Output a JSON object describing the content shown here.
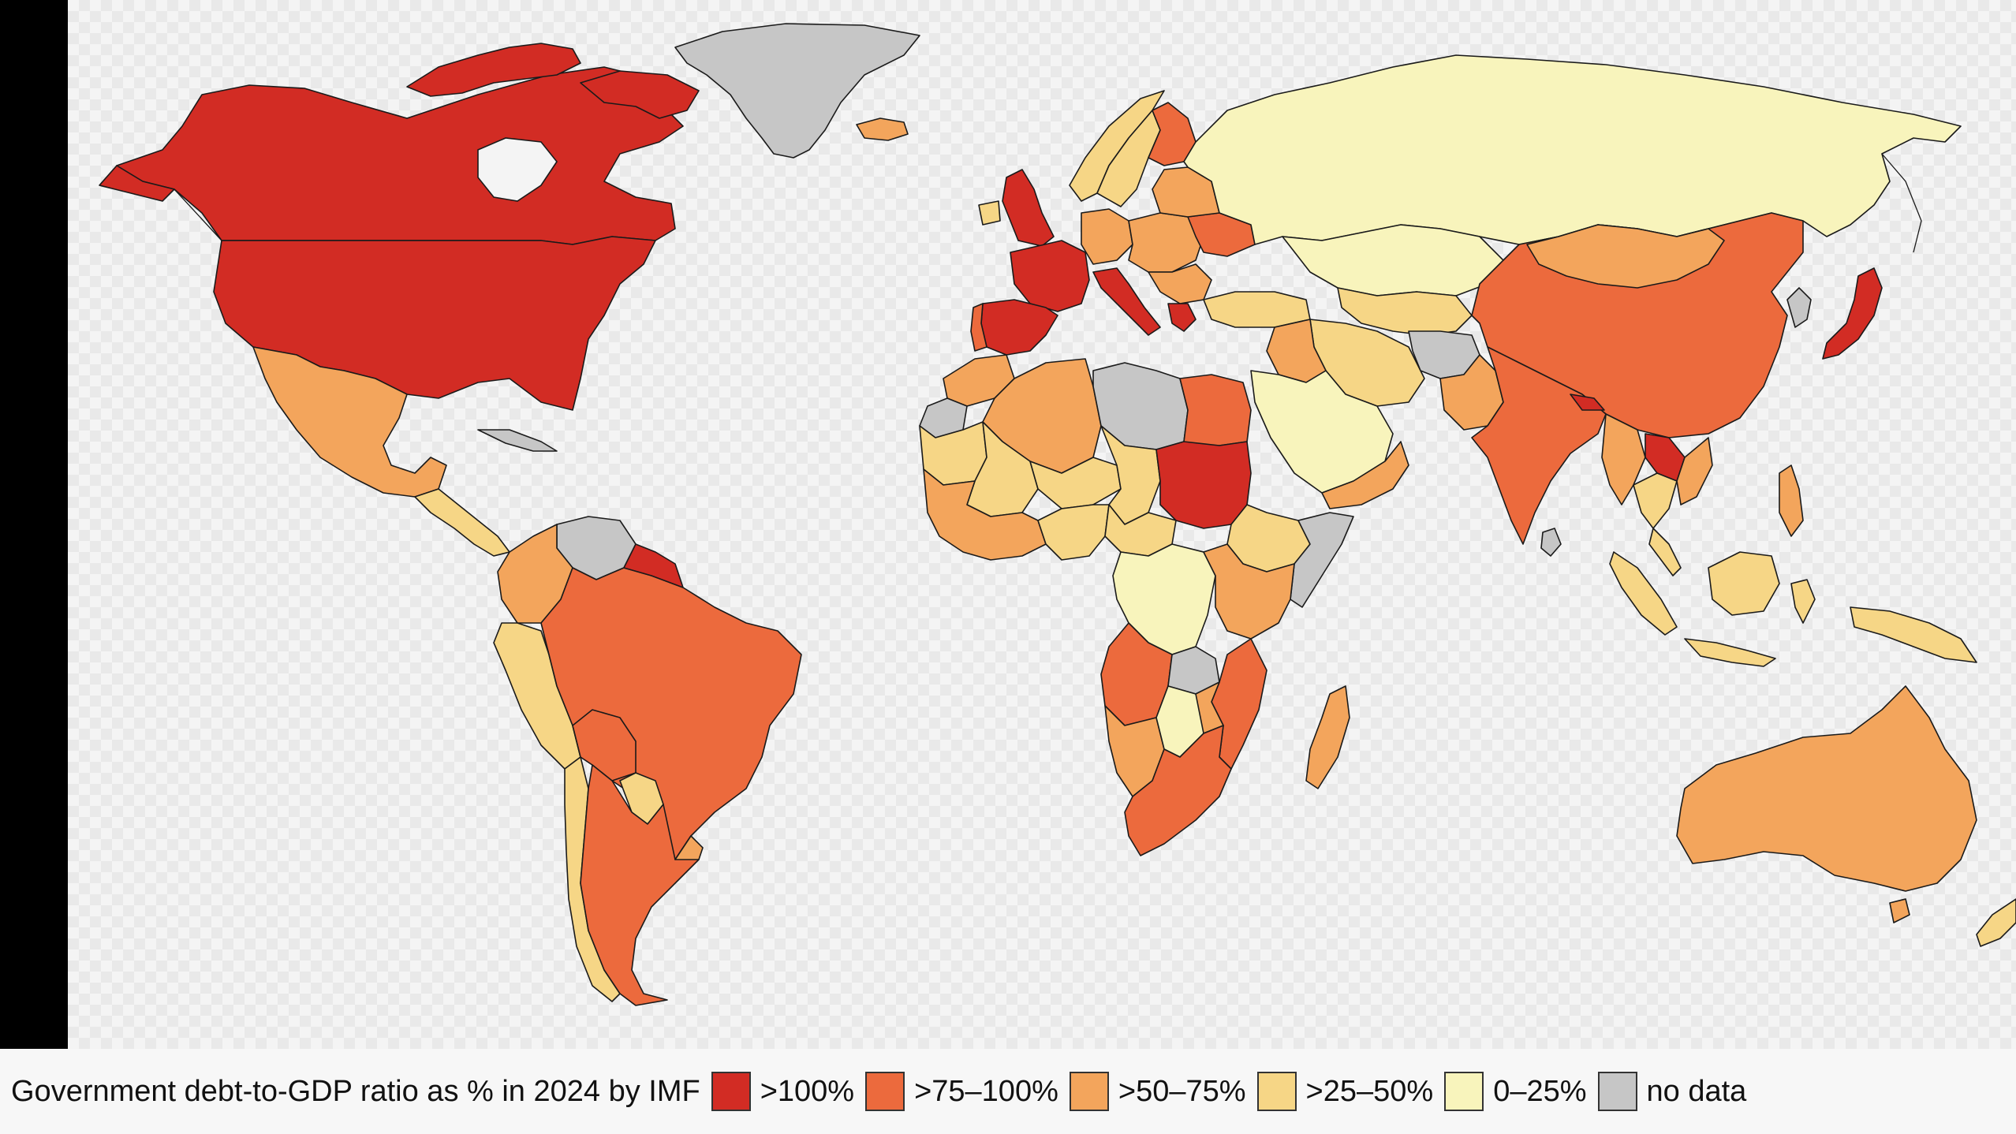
{
  "legend": {
    "title": "Government debt-to-GDP ratio as % in 2024 by IMF",
    "items": [
      {
        "label": ">100%",
        "color": "#d22c24"
      },
      {
        "label": ">75–100%",
        "color": "#ec6a3d"
      },
      {
        "label": ">50–75%",
        "color": "#f3a55c"
      },
      {
        "label": ">25–50%",
        "color": "#f6d686"
      },
      {
        "label": "0–25%",
        "color": "#f8f4bc"
      },
      {
        "label": "no data",
        "color": "#c6c6c6"
      }
    ]
  },
  "map_data": {
    "type": "choropleth",
    "metric": "Government debt-to-GDP ratio, 2024",
    "regions": [
      {
        "name": "Canada",
        "class": ">100%"
      },
      {
        "name": "United States",
        "class": ">100%"
      },
      {
        "name": "Greenland",
        "class": "no data"
      },
      {
        "name": "Mexico",
        "class": ">50–75%"
      },
      {
        "name": "Brazil",
        "class": ">75–100%"
      },
      {
        "name": "Argentina",
        "class": ">75–100%"
      },
      {
        "name": "Venezuela",
        "class": "no data"
      },
      {
        "name": "Colombia",
        "class": ">50–75%"
      },
      {
        "name": "Peru",
        "class": ">25–50%"
      },
      {
        "name": "Chile",
        "class": ">25–50%"
      },
      {
        "name": "Bolivia",
        "class": ">75–100%"
      },
      {
        "name": "Paraguay",
        "class": ">25–50%"
      },
      {
        "name": "United Kingdom",
        "class": ">100%"
      },
      {
        "name": "France",
        "class": ">100%"
      },
      {
        "name": "Spain",
        "class": ">100%"
      },
      {
        "name": "Portugal",
        "class": ">75–100%"
      },
      {
        "name": "Italy",
        "class": ">100%"
      },
      {
        "name": "Greece",
        "class": ">100%"
      },
      {
        "name": "Germany",
        "class": ">50–75%"
      },
      {
        "name": "Russia",
        "class": "0–25%"
      },
      {
        "name": "Kazakhstan",
        "class": "0–25%"
      },
      {
        "name": "China",
        "class": ">75–100%"
      },
      {
        "name": "Mongolia",
        "class": ">50–75%"
      },
      {
        "name": "India",
        "class": ">75–100%"
      },
      {
        "name": "Japan",
        "class": ">100%"
      },
      {
        "name": "Laos",
        "class": ">100%"
      },
      {
        "name": "Afghanistan",
        "class": "no data"
      },
      {
        "name": "Saudi Arabia",
        "class": "0–25%"
      },
      {
        "name": "Iran",
        "class": ">25–50%"
      },
      {
        "name": "Turkey",
        "class": ">25–50%"
      },
      {
        "name": "Egypt",
        "class": ">75–100%"
      },
      {
        "name": "Libya",
        "class": "no data"
      },
      {
        "name": "Algeria",
        "class": ">50–75%"
      },
      {
        "name": "Sudan",
        "class": ">100%"
      },
      {
        "name": "DR Congo",
        "class": "0–25%"
      },
      {
        "name": "Somalia",
        "class": "no data"
      },
      {
        "name": "Angola",
        "class": ">75–100%"
      },
      {
        "name": "South Africa",
        "class": ">75–100%"
      },
      {
        "name": "Mozambique",
        "class": ">75–100%"
      },
      {
        "name": "Madagascar",
        "class": ">50–75%"
      },
      {
        "name": "Zambia",
        "class": "no data"
      },
      {
        "name": "Botswana",
        "class": "0–25%"
      },
      {
        "name": "Australia",
        "class": ">50–75%"
      },
      {
        "name": "Indonesia",
        "class": ">25–50%"
      },
      {
        "name": "Papua New Guinea",
        "class": ">25–50%"
      },
      {
        "name": "New Zealand",
        "class": ">25–50%"
      },
      {
        "name": "Iceland",
        "class": ">50–75%"
      },
      {
        "name": "Finland",
        "class": ">75–100%"
      },
      {
        "name": "Sweden",
        "class": ">25–50%"
      },
      {
        "name": "Norway",
        "class": ">25–50%"
      },
      {
        "name": "Ukraine",
        "class": ">75–100%"
      },
      {
        "name": "Mali",
        "class": ">25–50%"
      },
      {
        "name": "Niger",
        "class": ">25–50%"
      },
      {
        "name": "Chad",
        "class": ">25–50%"
      },
      {
        "name": "Ethiopia",
        "class": ">25–50%"
      },
      {
        "name": "Western Sahara",
        "class": "no data"
      },
      {
        "name": "Mauritania",
        "class": ">25–50%"
      }
    ]
  }
}
